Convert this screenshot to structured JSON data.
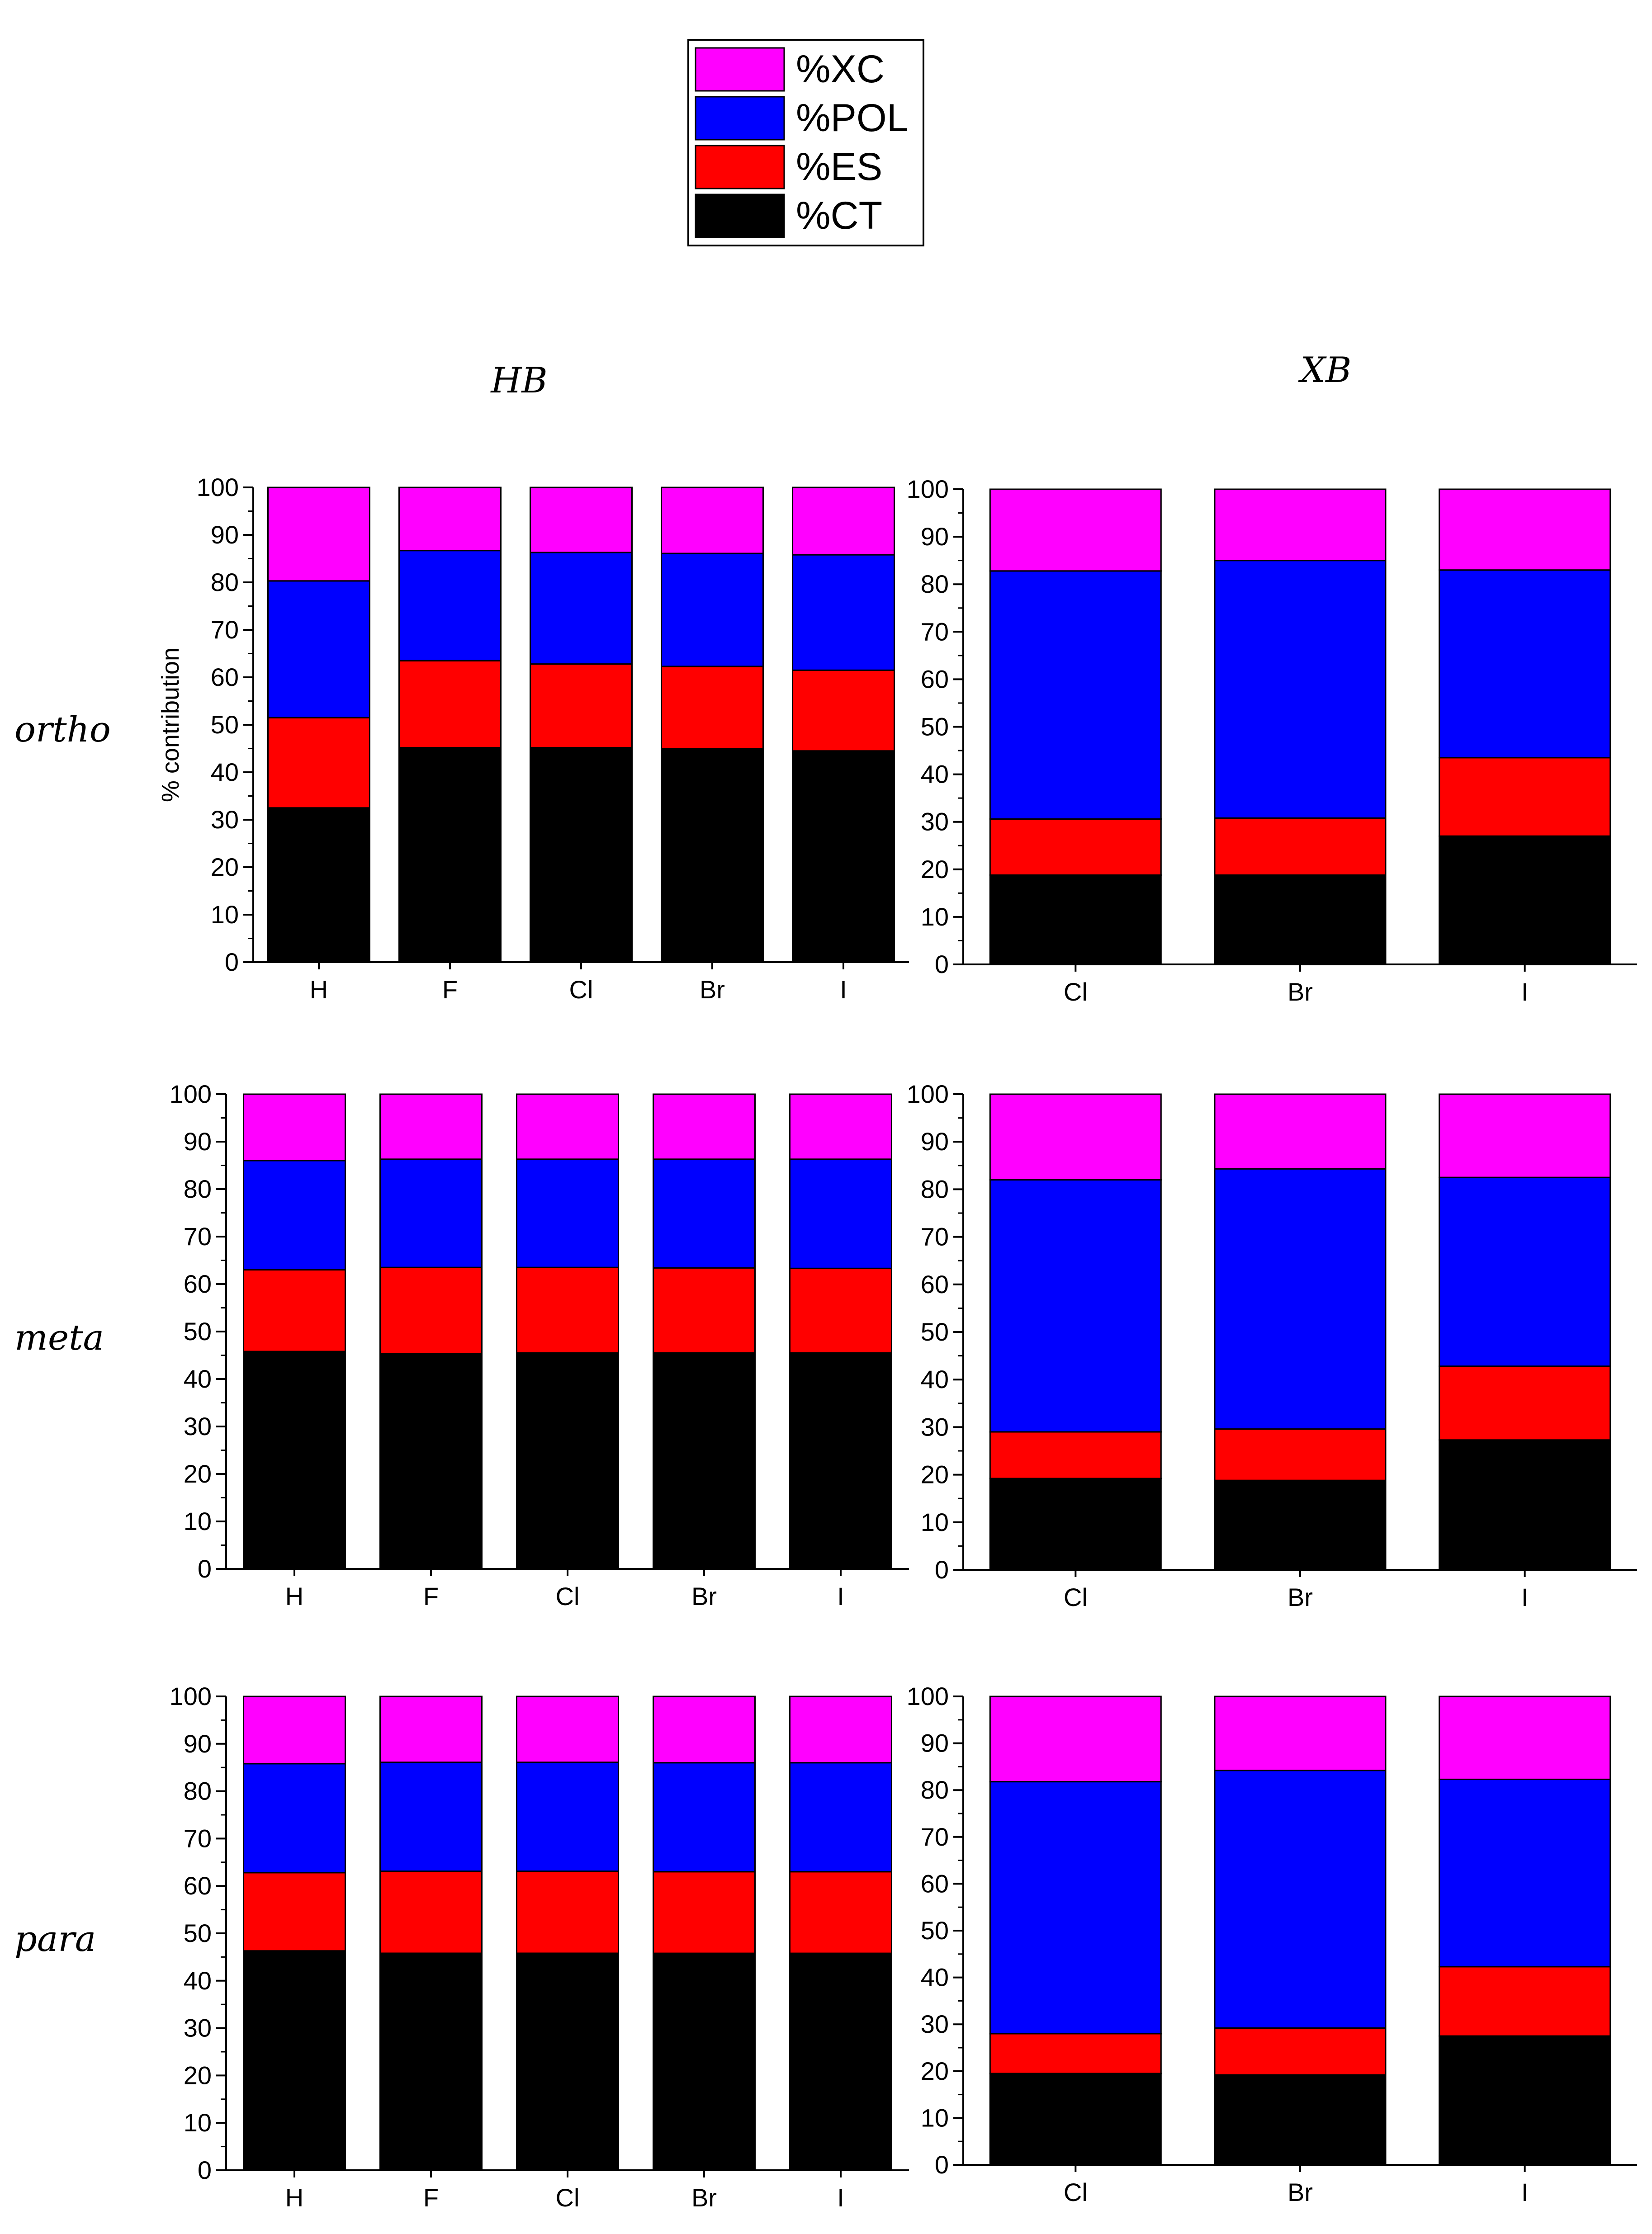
{
  "legend": {
    "items": [
      {
        "label": "%XC",
        "color": "#ff00ff"
      },
      {
        "label": "%POL",
        "color": "#0000ff"
      },
      {
        "label": "%ES",
        "color": "#ff0000"
      },
      {
        "label": "%CT",
        "color": "#000000"
      }
    ]
  },
  "column_titles": [
    "HB",
    "XB"
  ],
  "row_labels": [
    "ortho",
    "meta",
    "para"
  ],
  "chart_data": [
    {
      "type": "bar",
      "stacked": true,
      "panel": "ortho-HB",
      "categories": [
        "H",
        "F",
        "Cl",
        "Br",
        "I"
      ],
      "series": [
        {
          "name": "%CT",
          "values": [
            32.5,
            45.2,
            45.2,
            45.0,
            44.5
          ]
        },
        {
          "name": "%ES",
          "values": [
            19.0,
            18.3,
            17.6,
            17.3,
            17.0
          ]
        },
        {
          "name": "%POL",
          "values": [
            28.8,
            23.2,
            23.5,
            23.8,
            24.3
          ]
        },
        {
          "name": "%XC",
          "values": [
            19.7,
            13.3,
            13.7,
            13.9,
            14.2
          ]
        }
      ],
      "ylabel": "% contribution",
      "ylim": [
        0,
        100
      ],
      "yticks": [
        0,
        10,
        20,
        30,
        40,
        50,
        60,
        70,
        80,
        90,
        100
      ]
    },
    {
      "type": "bar",
      "stacked": true,
      "panel": "ortho-XB",
      "categories": [
        "Cl",
        "Br",
        "I"
      ],
      "series": [
        {
          "name": "%CT",
          "values": [
            18.8,
            18.8,
            27.0
          ]
        },
        {
          "name": "%ES",
          "values": [
            11.8,
            12.0,
            16.5
          ]
        },
        {
          "name": "%POL",
          "values": [
            52.2,
            54.2,
            39.5
          ]
        },
        {
          "name": "%XC",
          "values": [
            17.2,
            15.0,
            17.0
          ]
        }
      ],
      "ylabel": "",
      "ylim": [
        0,
        100
      ],
      "yticks": [
        0,
        10,
        20,
        30,
        40,
        50,
        60,
        70,
        80,
        90,
        100
      ]
    },
    {
      "type": "bar",
      "stacked": true,
      "panel": "meta-HB",
      "categories": [
        "H",
        "F",
        "Cl",
        "Br",
        "I"
      ],
      "series": [
        {
          "name": "%CT",
          "values": [
            45.8,
            45.3,
            45.5,
            45.5,
            45.5
          ]
        },
        {
          "name": "%ES",
          "values": [
            17.2,
            18.2,
            18.0,
            17.9,
            17.8
          ]
        },
        {
          "name": "%POL",
          "values": [
            23.0,
            22.8,
            22.8,
            22.9,
            23.0
          ]
        },
        {
          "name": "%XC",
          "values": [
            14.0,
            13.7,
            13.7,
            13.7,
            13.7
          ]
        }
      ],
      "ylabel": "",
      "ylim": [
        0,
        100
      ],
      "yticks": [
        0,
        10,
        20,
        30,
        40,
        50,
        60,
        70,
        80,
        90,
        100
      ]
    },
    {
      "type": "bar",
      "stacked": true,
      "panel": "meta-XB",
      "categories": [
        "Cl",
        "Br",
        "I"
      ],
      "series": [
        {
          "name": "%CT",
          "values": [
            19.2,
            18.8,
            27.3
          ]
        },
        {
          "name": "%ES",
          "values": [
            9.8,
            10.8,
            15.5
          ]
        },
        {
          "name": "%POL",
          "values": [
            53.0,
            54.7,
            39.7
          ]
        },
        {
          "name": "%XC",
          "values": [
            18.0,
            15.7,
            17.5
          ]
        }
      ],
      "ylabel": "",
      "ylim": [
        0,
        100
      ],
      "yticks": [
        0,
        10,
        20,
        30,
        40,
        50,
        60,
        70,
        80,
        90,
        100
      ]
    },
    {
      "type": "bar",
      "stacked": true,
      "panel": "para-HB",
      "categories": [
        "H",
        "F",
        "Cl",
        "Br",
        "I"
      ],
      "series": [
        {
          "name": "%CT",
          "values": [
            46.3,
            45.8,
            45.8,
            45.8,
            45.8
          ]
        },
        {
          "name": "%ES",
          "values": [
            16.5,
            17.3,
            17.3,
            17.2,
            17.2
          ]
        },
        {
          "name": "%POL",
          "values": [
            23.0,
            23.0,
            23.0,
            23.0,
            23.0
          ]
        },
        {
          "name": "%XC",
          "values": [
            14.2,
            13.9,
            13.9,
            14.0,
            14.0
          ]
        }
      ],
      "ylabel": "",
      "ylim": [
        0,
        100
      ],
      "yticks": [
        0,
        10,
        20,
        30,
        40,
        50,
        60,
        70,
        80,
        90,
        100
      ]
    },
    {
      "type": "bar",
      "stacked": true,
      "panel": "para-XB",
      "categories": [
        "Cl",
        "Br",
        "I"
      ],
      "series": [
        {
          "name": "%CT",
          "values": [
            19.5,
            19.2,
            27.5
          ]
        },
        {
          "name": "%ES",
          "values": [
            8.5,
            10.0,
            14.8
          ]
        },
        {
          "name": "%POL",
          "values": [
            53.8,
            55.0,
            40.0
          ]
        },
        {
          "name": "%XC",
          "values": [
            18.2,
            15.8,
            17.7
          ]
        }
      ],
      "ylabel": "",
      "ylim": [
        0,
        100
      ],
      "yticks": [
        0,
        10,
        20,
        30,
        40,
        50,
        60,
        70,
        80,
        90,
        100
      ]
    }
  ]
}
